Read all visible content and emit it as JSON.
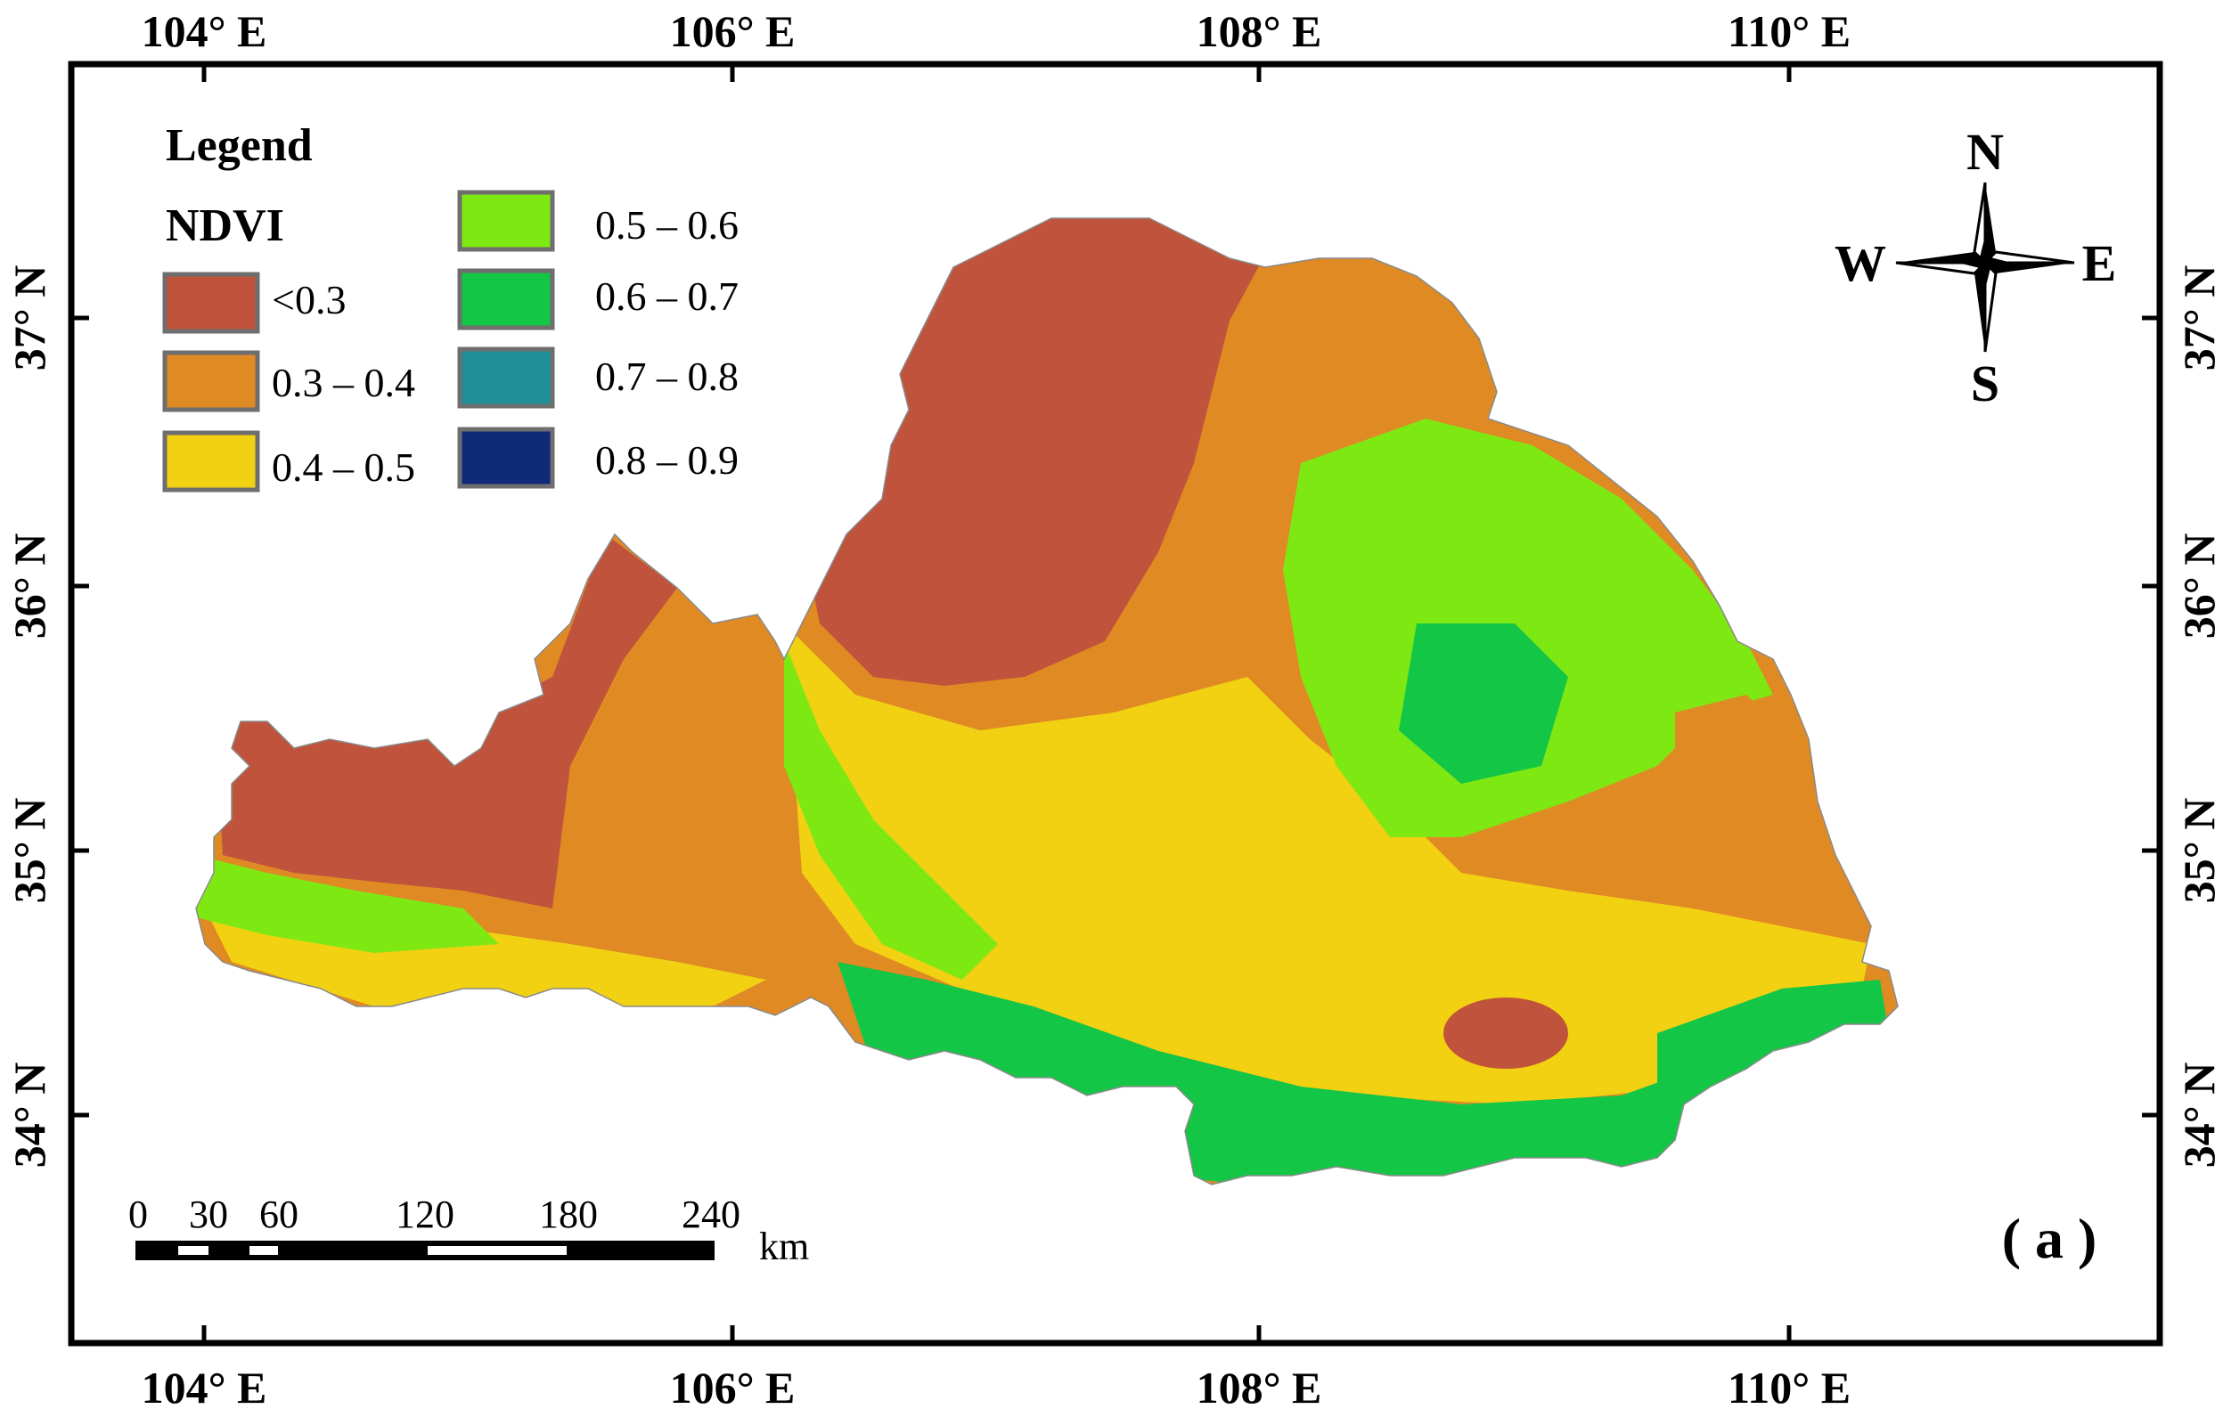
{
  "map": {
    "panel_label": "( a )",
    "top_longitude_labels": [
      "104° E",
      "106° E",
      "108° E",
      "110° E"
    ],
    "bottom_longitude_labels": [
      "104° E",
      "106° E",
      "108° E",
      "110° E"
    ],
    "left_latitude_labels": [
      "37° N",
      "36° N",
      "35° N",
      "34° N"
    ],
    "right_latitude_labels": [
      "37° N",
      "36° N",
      "35° N",
      "34° N"
    ]
  },
  "legend": {
    "title": "Legend",
    "subtitle": "NDVI",
    "classes": [
      {
        "label": "<0.3",
        "color": "#c0533b"
      },
      {
        "label": "0.3 – 0.4",
        "color": "#e08a24"
      },
      {
        "label": "0.4 – 0.5",
        "color": "#f2d012"
      },
      {
        "label": "0.5 – 0.6",
        "color": "#7ee812"
      },
      {
        "label": "0.6 – 0.7",
        "color": "#14c646"
      },
      {
        "label": "0.7 – 0.8",
        "color": "#1e8f96"
      },
      {
        "label": "0.8 – 0.9",
        "color": "#0f2a78"
      }
    ]
  },
  "north_arrow": {
    "north": "N",
    "south": "S",
    "east": "E",
    "west": "W"
  },
  "scale_bar": {
    "ticks": [
      "0",
      "30",
      "60",
      "120",
      "180",
      "240"
    ],
    "unit": "km"
  }
}
